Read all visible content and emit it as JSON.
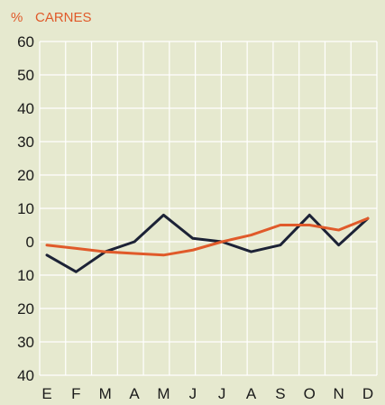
{
  "chart_data": {
    "type": "line",
    "title": "CARNES",
    "unit": "%",
    "categories": [
      "E",
      "F",
      "M",
      "A",
      "M",
      "J",
      "J",
      "A",
      "S",
      "O",
      "N",
      "D"
    ],
    "y_tick_labels": [
      "60",
      "50",
      "40",
      "30",
      "20",
      "10",
      "0",
      "10",
      "20",
      "30",
      "40"
    ],
    "y_tick_values": [
      60,
      50,
      40,
      30,
      20,
      10,
      0,
      -10,
      -20,
      -30,
      -40
    ],
    "ylim": [
      -40,
      60
    ],
    "grid": true,
    "series": [
      {
        "color": "#1c2236",
        "values": [
          -4,
          -9,
          -3,
          0,
          8,
          1,
          0,
          -3,
          -1,
          8,
          -1,
          7
        ]
      },
      {
        "color": "#e05a2a",
        "values": [
          -1,
          -2,
          -3,
          -3.5,
          -4,
          -2.5,
          0,
          2,
          5,
          5,
          3.5,
          7
        ]
      }
    ],
    "colors": {
      "title": "#e05a2a",
      "background": "#e6e9cf",
      "grid": "#ffffff",
      "axis_text": "#1a1a1a"
    }
  }
}
